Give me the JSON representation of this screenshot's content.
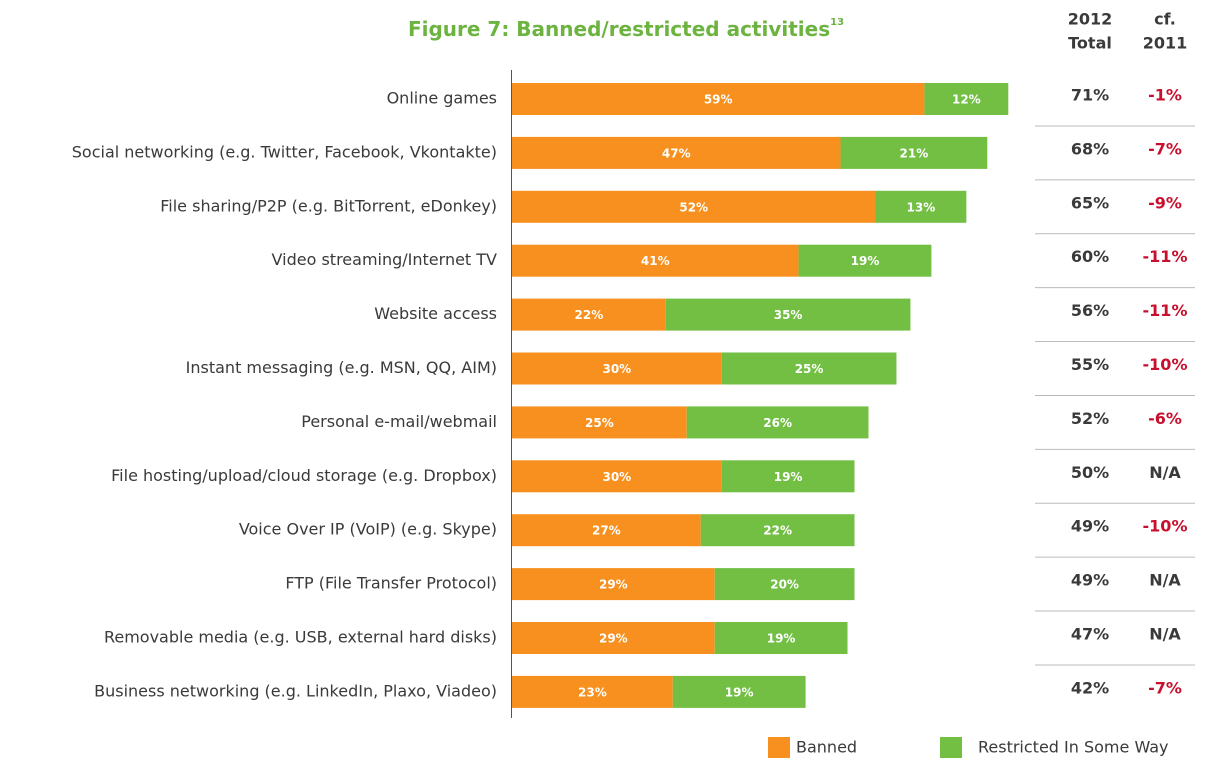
{
  "chart_data": {
    "type": "stacked_barh",
    "title": "Figure 7: Banned/restricted activities",
    "title_note": "13",
    "categories": [
      "Online games",
      "Social networking (e.g. Twitter, Facebook, Vkontakte)",
      "File sharing/P2P (e.g. BitTorrent, eDonkey)",
      "Video streaming/Internet TV",
      "Website access",
      "Instant messaging (e.g. MSN, QQ, AIM)",
      "Personal e-mail/webmail",
      "File hosting/upload/cloud storage (e.g. Dropbox)",
      "Voice Over IP (VoIP) (e.g. Skype)",
      "FTP (File Transfer Protocol)",
      "Removable media (e.g. USB, external hard disks)",
      "Business networking (e.g. LinkedIn, Plaxo, Viadeo)"
    ],
    "series": [
      {
        "name": "Banned",
        "color": "#f7901e",
        "values": [
          59,
          47,
          52,
          41,
          22,
          30,
          25,
          30,
          27,
          29,
          29,
          23
        ],
        "value_labels": [
          "59%",
          "47%",
          "52%",
          "41%",
          "22%",
          "30%",
          "25%",
          "30%",
          "27%",
          "29%",
          "29%",
          "23%"
        ]
      },
      {
        "name": "Restricted In Some Way",
        "color": "#72bf44",
        "values": [
          12,
          21,
          13,
          19,
          35,
          25,
          26,
          19,
          22,
          20,
          19,
          19
        ],
        "value_labels": [
          "12%",
          "21%",
          "13%",
          "19%",
          "35%",
          "25%",
          "26%",
          "19%",
          "22%",
          "20%",
          "19%",
          "19%"
        ]
      }
    ],
    "total_header": [
      "2012",
      "Total"
    ],
    "total_labels": [
      "71%",
      "68%",
      "65%",
      "60%",
      "56%",
      "55%",
      "52%",
      "50%",
      "49%",
      "49%",
      "47%",
      "42%"
    ],
    "change_header": [
      "cf.",
      "2011"
    ],
    "change_labels": [
      "-1%",
      "-7%",
      "-9%",
      "-11%",
      "-11%",
      "-10%",
      "-6%",
      "N/A",
      "-10%",
      "N/A",
      "N/A",
      "-7%"
    ]
  }
}
